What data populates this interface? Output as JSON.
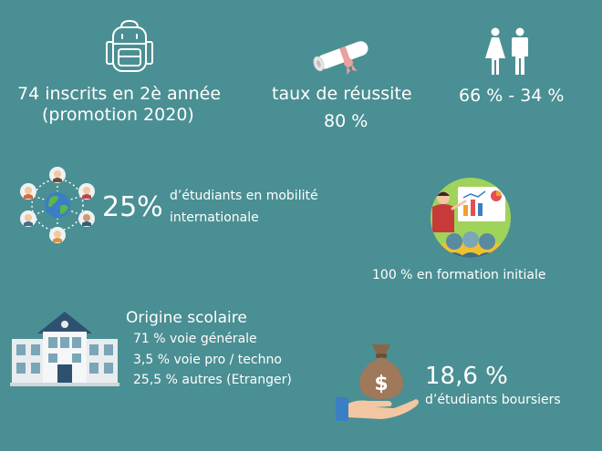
{
  "enrollment": {
    "line1": "74 inscrits en 2è année",
    "line2": "(promotion 2020)",
    "icon": "backpack-icon"
  },
  "success": {
    "label": "taux de réussite",
    "value": "80 %",
    "icon": "diploma-icon"
  },
  "gender": {
    "text": "66 % - 34 %",
    "icon": "female-male-icon"
  },
  "mobility": {
    "value": "25%",
    "line1": "d’étudiants en mobilité",
    "line2": "internationale",
    "icon": "globe-people-icon"
  },
  "training": {
    "text": "100 % en formation initiale",
    "icon": "presentation-icon"
  },
  "origin": {
    "title": "Origine scolaire",
    "items": [
      "71 % voie générale",
      "3,5 % voie pro / techno",
      "25,5 % autres (Etranger)"
    ],
    "icon": "school-building-icon"
  },
  "scholarship": {
    "value": "18,6 %",
    "label": "d’étudiants boursiers",
    "icon": "money-bag-hand-icon"
  },
  "colors": {
    "background": "#4a8f93",
    "text": "#ffffff",
    "diploma_ribbon": "#e8a0a0",
    "money_bag": "#a0785a",
    "hand": "#f2c7a2"
  }
}
